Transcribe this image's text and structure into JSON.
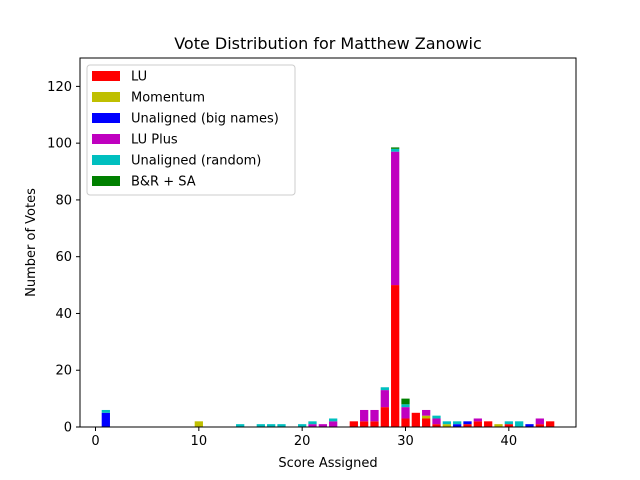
{
  "chart_data": {
    "type": "bar",
    "stacked": true,
    "title": "Vote Distribution for Matthew Zanowic",
    "xlabel": "Score Assigned",
    "ylabel": "Number of Votes",
    "xlim": [
      -1.5,
      46.5
    ],
    "ylim": [
      0,
      130
    ],
    "xticks": [
      0,
      10,
      20,
      30,
      40
    ],
    "yticks": [
      0,
      20,
      40,
      60,
      80,
      100,
      120
    ],
    "grid": false,
    "legend_position": "top-left",
    "series": [
      {
        "name": "LU",
        "color": "#ff0000",
        "points": [
          [
            25,
            2
          ],
          [
            26,
            2
          ],
          [
            27,
            2
          ],
          [
            28,
            7
          ],
          [
            29,
            50
          ],
          [
            30,
            3
          ],
          [
            31,
            5
          ],
          [
            32,
            3
          ],
          [
            33,
            1
          ],
          [
            36,
            1
          ],
          [
            37,
            2
          ],
          [
            38,
            2
          ],
          [
            40,
            1
          ],
          [
            43,
            1
          ],
          [
            44,
            2
          ]
        ]
      },
      {
        "name": "Momentum",
        "color": "#bfbf00",
        "points": [
          [
            10,
            2
          ],
          [
            32,
            1
          ],
          [
            34,
            1
          ],
          [
            39,
            1
          ]
        ]
      },
      {
        "name": "Unaligned (big names)",
        "color": "#0000ff",
        "points": [
          [
            1,
            5
          ],
          [
            35,
            1
          ],
          [
            36,
            1
          ],
          [
            42,
            1
          ]
        ]
      },
      {
        "name": "LU Plus",
        "color": "#bf00bf",
        "points": [
          [
            21,
            1
          ],
          [
            22,
            1
          ],
          [
            23,
            2
          ],
          [
            26,
            4
          ],
          [
            27,
            4
          ],
          [
            28,
            6
          ],
          [
            29,
            47
          ],
          [
            30,
            4
          ],
          [
            32,
            2
          ],
          [
            33,
            2
          ],
          [
            37,
            1
          ],
          [
            43,
            2
          ]
        ]
      },
      {
        "name": "Unaligned (random)",
        "color": "#00bfbf",
        "points": [
          [
            1,
            1
          ],
          [
            14,
            1
          ],
          [
            16,
            1
          ],
          [
            17,
            1
          ],
          [
            18,
            1
          ],
          [
            20,
            1
          ],
          [
            21,
            1
          ],
          [
            23,
            1
          ],
          [
            28,
            1
          ],
          [
            29,
            1
          ],
          [
            30,
            1
          ],
          [
            33,
            1
          ],
          [
            34,
            1
          ],
          [
            35,
            1
          ],
          [
            40,
            1
          ],
          [
            41,
            2
          ]
        ]
      },
      {
        "name": "B&R + SA",
        "color": "#008000",
        "points": [
          [
            29,
            0.5
          ],
          [
            30,
            2
          ]
        ]
      }
    ]
  }
}
